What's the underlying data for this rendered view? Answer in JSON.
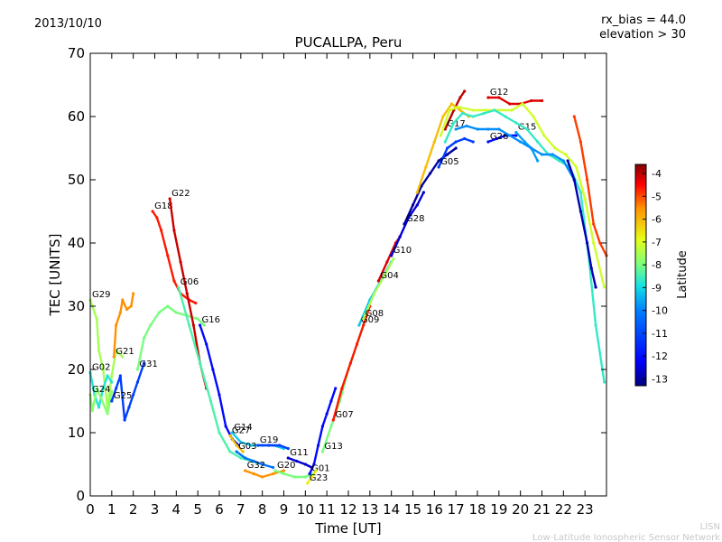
{
  "header": {
    "date": "2013/10/10",
    "rx_bias": "rx_bias = 44.0",
    "elevation": "elevation > 30"
  },
  "footer": {
    "line1": "LISN",
    "line2": "Low-Latitude Ionospheric Sensor Network"
  },
  "chart_data": {
    "type": "scatter",
    "title": "PUCALLPA, Peru",
    "xlabel": "Time [UT]",
    "ylabel": "TEC [UNITS]",
    "xlim": [
      0,
      24
    ],
    "ylim": [
      0,
      70
    ],
    "xticks": [
      "0",
      "1",
      "2",
      "3",
      "4",
      "5",
      "6",
      "7",
      "8",
      "9",
      "10",
      "11",
      "12",
      "13",
      "14",
      "15",
      "16",
      "17",
      "18",
      "19",
      "20",
      "21",
      "22",
      "23"
    ],
    "yticks": [
      "0",
      "10",
      "20",
      "30",
      "40",
      "50",
      "60",
      "70"
    ],
    "grid": false,
    "colorbar": {
      "label": "Latitude",
      "range": [
        -13.3,
        -3.6
      ],
      "ticks": [
        "-4",
        "-5",
        "-6",
        "-7",
        "-8",
        "-9",
        "-10",
        "-11",
        "-12",
        "-13"
      ],
      "colormap": [
        "#00007f",
        "#0000ff",
        "#0080ff",
        "#15e0e6",
        "#7dff7a",
        "#e6ff15",
        "#ff9400",
        "#ff0000",
        "#7f0000"
      ]
    },
    "series": [
      {
        "name": "G29",
        "lat": -8.0,
        "points": [
          [
            0.0,
            31.0
          ],
          [
            0.3,
            28.0
          ],
          [
            0.4,
            23.0
          ],
          [
            0.6,
            20.0
          ],
          [
            0.8,
            14.0
          ],
          [
            1.0,
            19.0
          ],
          [
            1.2,
            23.0
          ],
          [
            1.5,
            22.0
          ]
        ]
      },
      {
        "name": "G02",
        "lat": -9.5,
        "points": [
          [
            0.0,
            19.5
          ],
          [
            0.2,
            16.0
          ],
          [
            0.4,
            14.0
          ],
          [
            0.6,
            17.0
          ],
          [
            0.8,
            19.0
          ],
          [
            1.0,
            18.0
          ]
        ]
      },
      {
        "name": "G24",
        "lat": -8.3,
        "points": [
          [
            0.0,
            16.0
          ],
          [
            0.1,
            13.5
          ],
          [
            0.3,
            17.0
          ],
          [
            0.5,
            15.5
          ],
          [
            0.8,
            13.0
          ],
          [
            1.0,
            16.5
          ]
        ]
      },
      {
        "name": "G21",
        "lat": -6.0,
        "points": [
          [
            1.1,
            22.0
          ],
          [
            1.2,
            27.0
          ],
          [
            1.4,
            29.0
          ],
          [
            1.5,
            31.0
          ],
          [
            1.7,
            29.5
          ],
          [
            1.9,
            30.0
          ],
          [
            2.0,
            32.0
          ]
        ]
      },
      {
        "name": "G25",
        "lat": -11.5,
        "points": [
          [
            1.0,
            15.0
          ],
          [
            1.2,
            17.0
          ],
          [
            1.4,
            19.0
          ],
          [
            1.6,
            12.0
          ],
          [
            1.8,
            14.0
          ],
          [
            2.0,
            16.0
          ],
          [
            2.2,
            18.0
          ],
          [
            2.5,
            21.0
          ]
        ]
      },
      {
        "name": "G31",
        "lat": -8.5,
        "points": [
          [
            2.2,
            20.0
          ],
          [
            2.5,
            25.0
          ],
          [
            2.8,
            27.0
          ],
          [
            3.2,
            29.0
          ],
          [
            3.6,
            30.0
          ],
          [
            4.0,
            29.0
          ],
          [
            4.5,
            28.5
          ],
          [
            5.0,
            28.0
          ],
          [
            5.3,
            27.0
          ]
        ]
      },
      {
        "name": "G18",
        "lat": -5.0,
        "points": [
          [
            2.9,
            45.0
          ],
          [
            3.1,
            44.0
          ],
          [
            3.3,
            42.0
          ],
          [
            3.6,
            38.0
          ],
          [
            3.9,
            34.0
          ],
          [
            4.2,
            32.0
          ],
          [
            4.6,
            31.0
          ],
          [
            4.9,
            30.5
          ]
        ]
      },
      {
        "name": "G22",
        "lat": -4.3,
        "points": [
          [
            3.7,
            47.0
          ],
          [
            3.9,
            42.0
          ],
          [
            4.2,
            37.0
          ],
          [
            4.5,
            32.0
          ],
          [
            4.8,
            27.0
          ],
          [
            5.1,
            21.0
          ],
          [
            5.4,
            17.0
          ]
        ]
      },
      {
        "name": "G16",
        "lat": -12.0,
        "points": [
          [
            5.1,
            27.0
          ],
          [
            5.4,
            24.0
          ],
          [
            5.7,
            20.0
          ],
          [
            6.0,
            16.0
          ],
          [
            6.3,
            11.0
          ],
          [
            6.6,
            9.0
          ],
          [
            6.9,
            8.0
          ]
        ]
      },
      {
        "name": "G06",
        "lat": -9.0,
        "points": [
          [
            4.1,
            33.0
          ],
          [
            4.6,
            27.0
          ],
          [
            5.1,
            21.0
          ],
          [
            5.6,
            15.0
          ],
          [
            6.0,
            10.0
          ],
          [
            6.5,
            7.0
          ],
          [
            7.0,
            6.0
          ],
          [
            7.5,
            5.5
          ],
          [
            8.0,
            5.0
          ]
        ]
      },
      {
        "name": "G14",
        "lat": -10.0,
        "points": [
          [
            6.6,
            10.0
          ],
          [
            7.0,
            8.5
          ],
          [
            7.5,
            8.0
          ],
          [
            8.0,
            8.0
          ],
          [
            8.5,
            8.0
          ],
          [
            9.0,
            7.5
          ]
        ]
      },
      {
        "name": "G27",
        "lat": -6.5,
        "points": [
          [
            6.5,
            9.5
          ],
          [
            6.8,
            8.0
          ],
          [
            7.1,
            7.0
          ]
        ]
      },
      {
        "name": "G03",
        "lat": -11.0,
        "points": [
          [
            6.8,
            7.0
          ],
          [
            7.2,
            6.0
          ],
          [
            7.6,
            5.5
          ],
          [
            8.0,
            5.0
          ],
          [
            8.5,
            4.5
          ]
        ]
      },
      {
        "name": "G19",
        "lat": -11.5,
        "points": [
          [
            7.8,
            8.0
          ],
          [
            8.3,
            8.0
          ],
          [
            8.8,
            8.0
          ],
          [
            9.2,
            7.5
          ]
        ]
      },
      {
        "name": "G32",
        "lat": -6.0,
        "points": [
          [
            7.2,
            4.0
          ],
          [
            7.6,
            3.5
          ],
          [
            8.0,
            3.0
          ],
          [
            8.5,
            3.5
          ],
          [
            9.0,
            4.0
          ]
        ]
      },
      {
        "name": "G11",
        "lat": -12.5,
        "points": [
          [
            9.2,
            6.0
          ],
          [
            9.6,
            5.5
          ],
          [
            10.0,
            5.0
          ],
          [
            10.3,
            4.5
          ]
        ]
      },
      {
        "name": "G20",
        "lat": -8.5,
        "points": [
          [
            8.6,
            4.0
          ],
          [
            9.0,
            3.5
          ],
          [
            9.5,
            3.0
          ],
          [
            10.0,
            3.0
          ],
          [
            10.3,
            3.5
          ]
        ]
      },
      {
        "name": "G01",
        "lat": -12.0,
        "points": [
          [
            10.2,
            3.5
          ],
          [
            10.4,
            5.0
          ],
          [
            10.6,
            8.0
          ],
          [
            10.8,
            11.0
          ],
          [
            11.0,
            13.0
          ],
          [
            11.2,
            15.0
          ],
          [
            11.4,
            17.0
          ]
        ]
      },
      {
        "name": "G23",
        "lat": -7.0,
        "points": [
          [
            10.1,
            2.0
          ],
          [
            10.3,
            3.0
          ],
          [
            10.5,
            4.0
          ]
        ]
      },
      {
        "name": "G13",
        "lat": -8.5,
        "points": [
          [
            10.8,
            7.0
          ],
          [
            11.2,
            11.0
          ],
          [
            11.6,
            15.0
          ],
          [
            12.0,
            20.0
          ],
          [
            12.4,
            24.0
          ],
          [
            12.8,
            28.0
          ]
        ]
      },
      {
        "name": "G07",
        "lat": -5.0,
        "points": [
          [
            11.3,
            12.0
          ],
          [
            11.7,
            17.0
          ],
          [
            12.1,
            21.0
          ],
          [
            12.4,
            24.0
          ],
          [
            12.7,
            27.0
          ],
          [
            13.0,
            30.0
          ]
        ]
      },
      {
        "name": "G09",
        "lat": -10.0,
        "points": [
          [
            12.5,
            27.0
          ],
          [
            13.0,
            31.0
          ],
          [
            13.5,
            34.0
          ],
          [
            14.0,
            37.0
          ]
        ]
      },
      {
        "name": "G08",
        "lat": -8.0,
        "points": [
          [
            12.7,
            28.0
          ],
          [
            13.2,
            32.0
          ],
          [
            13.7,
            35.0
          ],
          [
            14.1,
            37.5
          ]
        ]
      },
      {
        "name": "G04",
        "lat": -4.5,
        "points": [
          [
            13.4,
            34.0
          ],
          [
            13.8,
            37.0
          ],
          [
            14.2,
            40.0
          ],
          [
            14.4,
            41.0
          ]
        ]
      },
      {
        "name": "G10",
        "lat": -12.5,
        "points": [
          [
            14.0,
            38.0
          ],
          [
            14.4,
            41.0
          ],
          [
            14.8,
            44.0
          ],
          [
            15.2,
            46.0
          ],
          [
            15.5,
            48.0
          ]
        ]
      },
      {
        "name": "G28",
        "lat": -13.0,
        "points": [
          [
            14.6,
            43.0
          ],
          [
            15.0,
            46.0
          ],
          [
            15.4,
            49.0
          ],
          [
            15.8,
            51.0
          ],
          [
            16.2,
            53.0
          ],
          [
            16.6,
            54.0
          ],
          [
            17.0,
            55.0
          ]
        ]
      },
      {
        "name": "G05",
        "lat": -11.5,
        "points": [
          [
            16.2,
            52.0
          ],
          [
            16.6,
            55.0
          ],
          [
            17.0,
            56.0
          ],
          [
            17.4,
            56.5
          ],
          [
            17.8,
            56.0
          ]
        ]
      },
      {
        "name": "G26",
        "lat": -12.0,
        "points": [
          [
            18.5,
            56.0
          ],
          [
            18.9,
            56.5
          ],
          [
            19.3,
            57.0
          ],
          [
            19.8,
            57.0
          ]
        ]
      },
      {
        "name": "G15",
        "lat": -10.5,
        "points": [
          [
            19.8,
            57.5
          ],
          [
            20.2,
            56.0
          ],
          [
            20.5,
            55.0
          ],
          [
            20.8,
            53.0
          ]
        ]
      },
      {
        "name": "G17",
        "lat": -4.2,
        "points": [
          [
            16.5,
            58.0
          ],
          [
            16.9,
            61.0
          ],
          [
            17.2,
            63.0
          ],
          [
            17.4,
            64.0
          ]
        ]
      },
      {
        "name": "G12",
        "lat": -4.5,
        "points": [
          [
            18.5,
            63.0
          ],
          [
            19.0,
            63.0
          ],
          [
            19.5,
            62.0
          ],
          [
            20.0,
            62.0
          ],
          [
            20.5,
            62.5
          ],
          [
            21.0,
            62.5
          ]
        ]
      },
      {
        "name": "",
        "lat": -6.5,
        "points": [
          [
            15.2,
            48.0
          ],
          [
            15.6,
            52.0
          ],
          [
            16.0,
            56.0
          ],
          [
            16.4,
            60.0
          ],
          [
            16.8,
            62.0
          ],
          [
            17.2,
            61.0
          ],
          [
            17.6,
            60.0
          ]
        ]
      },
      {
        "name": "",
        "lat": -7.5,
        "points": [
          [
            16.3,
            57.0
          ],
          [
            16.7,
            61.0
          ],
          [
            17.1,
            61.5
          ],
          [
            17.8,
            61.0
          ],
          [
            18.4,
            61.0
          ],
          [
            19.0,
            61.0
          ],
          [
            19.6,
            61.0
          ],
          [
            20.1,
            62.0
          ],
          [
            20.6,
            60.0
          ],
          [
            21.1,
            57.0
          ],
          [
            21.6,
            55.0
          ],
          [
            22.1,
            54.0
          ],
          [
            22.6,
            52.0
          ],
          [
            23.0,
            47.0
          ],
          [
            23.4,
            40.0
          ],
          [
            23.9,
            33.0
          ]
        ]
      },
      {
        "name": "",
        "lat": -9.3,
        "points": [
          [
            16.5,
            56.0
          ],
          [
            16.9,
            59.0
          ],
          [
            17.3,
            60.5
          ],
          [
            17.8,
            60.0
          ],
          [
            18.3,
            60.5
          ],
          [
            18.8,
            61.0
          ],
          [
            19.3,
            60.0
          ],
          [
            19.8,
            59.0
          ],
          [
            20.3,
            58.0
          ],
          [
            20.8,
            56.0
          ],
          [
            21.3,
            54.0
          ],
          [
            21.8,
            53.0
          ],
          [
            22.3,
            52.0
          ],
          [
            22.8,
            48.0
          ],
          [
            23.2,
            37.0
          ],
          [
            23.5,
            27.0
          ],
          [
            23.9,
            18.0
          ]
        ]
      },
      {
        "name": "",
        "lat": -10.7,
        "points": [
          [
            17.0,
            58.0
          ],
          [
            17.5,
            58.5
          ],
          [
            18.0,
            58.0
          ],
          [
            18.5,
            58.0
          ],
          [
            19.0,
            58.0
          ],
          [
            19.5,
            57.0
          ],
          [
            20.0,
            56.0
          ],
          [
            20.5,
            55.0
          ],
          [
            21.0,
            54.0
          ],
          [
            21.5,
            54.0
          ],
          [
            22.0,
            53.0
          ],
          [
            22.5,
            50.0
          ]
        ]
      },
      {
        "name": "",
        "lat": -12.8,
        "points": [
          [
            22.2,
            53.0
          ],
          [
            22.5,
            50.0
          ],
          [
            22.8,
            45.0
          ],
          [
            23.1,
            40.0
          ],
          [
            23.3,
            36.0
          ],
          [
            23.5,
            33.0
          ]
        ]
      },
      {
        "name": "",
        "lat": -5.3,
        "points": [
          [
            22.5,
            60.0
          ],
          [
            22.8,
            56.0
          ],
          [
            23.1,
            50.0
          ],
          [
            23.4,
            43.0
          ],
          [
            23.7,
            40.0
          ],
          [
            24.0,
            38.0
          ]
        ]
      }
    ]
  }
}
